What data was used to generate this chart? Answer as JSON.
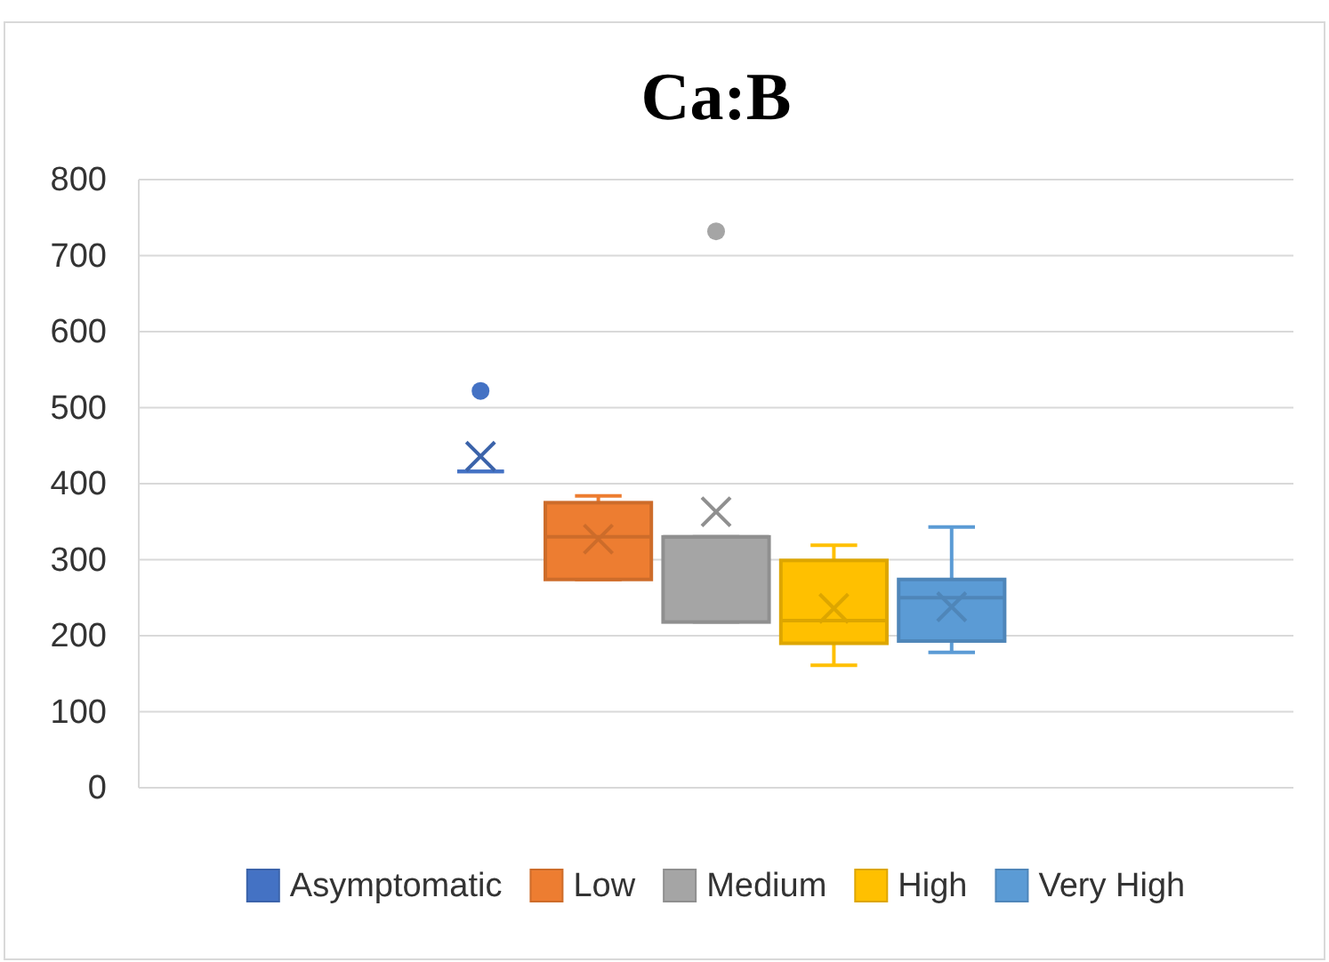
{
  "chart_data": {
    "type": "box",
    "title": "Ca:B",
    "categories": [
      null
    ],
    "ylim": [
      0,
      800
    ],
    "yticks": [
      0,
      100,
      200,
      300,
      400,
      500,
      600,
      700,
      800
    ],
    "grid": "y",
    "legend": "bottom",
    "series": [
      {
        "name": "Asymptomatic",
        "color": "#4472c4",
        "boxes": [
          {
            "low": 416,
            "q1": 416,
            "median": 416,
            "q3": 416,
            "high": 416,
            "mean": 436,
            "outliers": [
              522
            ]
          }
        ]
      },
      {
        "name": "Low",
        "color": "#ed7d31",
        "boxes": [
          {
            "low": 274,
            "q1": 274,
            "median": 330,
            "q3": 375,
            "high": 384,
            "mean": 327
          }
        ]
      },
      {
        "name": "Medium",
        "color": "#a5a5a5",
        "boxes": [
          {
            "low": 218,
            "q1": 218,
            "median": 330,
            "q3": 330,
            "high": 330,
            "mean": 363,
            "outliers": [
              732
            ]
          }
        ]
      },
      {
        "name": "High",
        "color": "#ffc000",
        "boxes": [
          {
            "low": 161,
            "q1": 190,
            "median": 220,
            "q3": 299,
            "high": 319,
            "mean": 236
          }
        ]
      },
      {
        "name": "Very High",
        "color": "#5b9bd5",
        "boxes": [
          {
            "low": 178,
            "q1": 193,
            "median": 250,
            "q3": 274,
            "high": 343,
            "mean": 238
          }
        ]
      }
    ]
  }
}
